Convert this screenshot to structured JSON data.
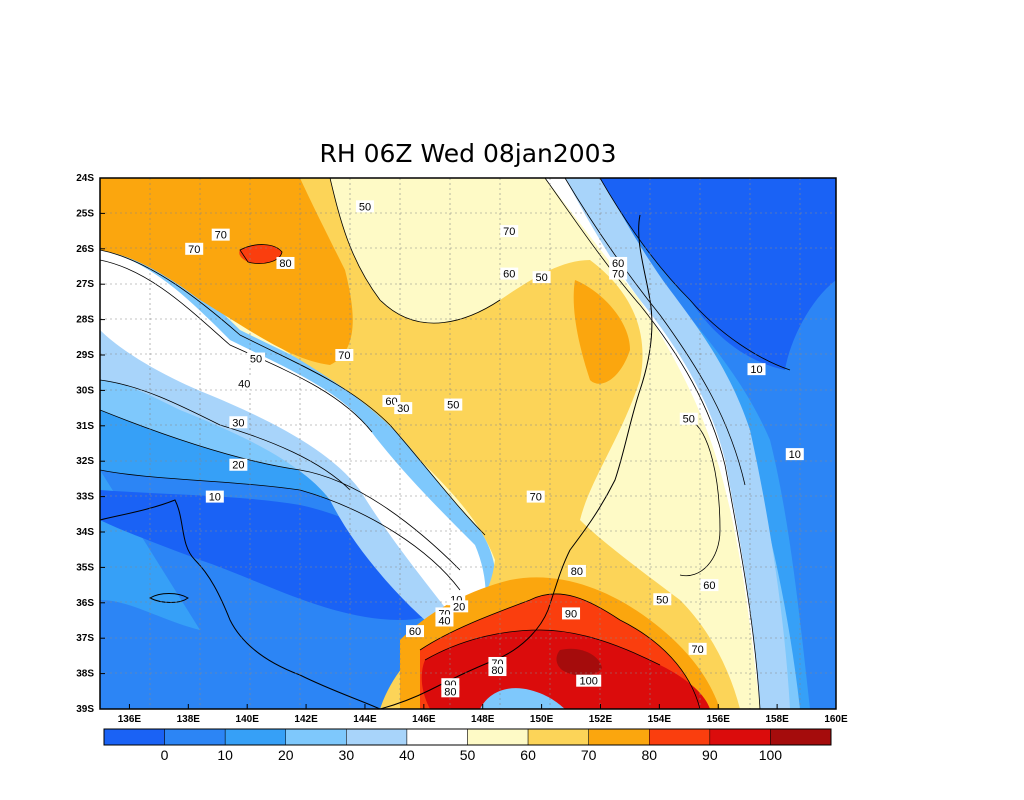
{
  "title": "RH 06Z Wed 08jan2003",
  "lat_labels": [
    "24S",
    "25S",
    "26S",
    "27S",
    "28S",
    "29S",
    "30S",
    "31S",
    "32S",
    "33S",
    "34S",
    "35S",
    "36S",
    "37S",
    "38S",
    "39S"
  ],
  "lon_labels": [
    "136E",
    "138E",
    "140E",
    "142E",
    "144E",
    "146E",
    "148E",
    "150E",
    "152E",
    "154E",
    "156E",
    "158E",
    "160E"
  ],
  "colorbar": {
    "labels": [
      "0",
      "10",
      "20",
      "30",
      "40",
      "50",
      "60",
      "70",
      "80",
      "90",
      "100"
    ],
    "colors": [
      "#1a62f5",
      "#2c85f5",
      "#36a0f7",
      "#7ec8fc",
      "#a8d4fa",
      "#ffffff",
      "#fefac6",
      "#fcd458",
      "#fba60e",
      "#fa3e0e",
      "#db0c0c",
      "#a50c0c"
    ]
  },
  "contour_labels": [
    {
      "text": "50",
      "lon": 144.0,
      "lat": -24.8
    },
    {
      "text": "70",
      "lon": 148.9,
      "lat": -25.5
    },
    {
      "text": "70",
      "lon": 139.1,
      "lat": -25.6
    },
    {
      "text": "70",
      "lon": 138.2,
      "lat": -26.0
    },
    {
      "text": "80",
      "lon": 141.3,
      "lat": -26.4
    },
    {
      "text": "60",
      "lon": 148.9,
      "lat": -26.7
    },
    {
      "text": "50",
      "lon": 150.0,
      "lat": -26.8
    },
    {
      "text": "60",
      "lon": 152.6,
      "lat": -26.4
    },
    {
      "text": "70",
      "lon": 152.6,
      "lat": -26.7
    },
    {
      "text": "50",
      "lon": 140.3,
      "lat": -29.1
    },
    {
      "text": "70",
      "lon": 143.3,
      "lat": -29.0
    },
    {
      "text": "40",
      "lon": 139.9,
      "lat": -29.8
    },
    {
      "text": "10",
      "lon": 157.3,
      "lat": -29.4
    },
    {
      "text": "60",
      "lon": 144.9,
      "lat": -30.3
    },
    {
      "text": "30",
      "lon": 145.3,
      "lat": -30.5
    },
    {
      "text": "50",
      "lon": 147.0,
      "lat": -30.4
    },
    {
      "text": "30",
      "lon": 139.7,
      "lat": -30.9
    },
    {
      "text": "50",
      "lon": 155.0,
      "lat": -30.8
    },
    {
      "text": "20",
      "lon": 139.7,
      "lat": -32.1
    },
    {
      "text": "10",
      "lon": 158.6,
      "lat": -31.8
    },
    {
      "text": "10",
      "lon": 138.9,
      "lat": -33.0
    },
    {
      "text": "70",
      "lon": 149.8,
      "lat": -33.0
    },
    {
      "text": "80",
      "lon": 151.2,
      "lat": -35.1
    },
    {
      "text": "60",
      "lon": 155.7,
      "lat": -35.5
    },
    {
      "text": "50",
      "lon": 154.1,
      "lat": -35.9
    },
    {
      "text": "10",
      "lon": 147.1,
      "lat": -35.9
    },
    {
      "text": "20",
      "lon": 147.2,
      "lat": -36.1
    },
    {
      "text": "70",
      "lon": 146.7,
      "lat": -36.3
    },
    {
      "text": "40",
      "lon": 146.7,
      "lat": -36.5
    },
    {
      "text": "90",
      "lon": 151.0,
      "lat": -36.3
    },
    {
      "text": "60",
      "lon": 145.7,
      "lat": -36.8
    },
    {
      "text": "70",
      "lon": 155.3,
      "lat": -37.3
    },
    {
      "text": "70",
      "lon": 148.5,
      "lat": -37.7
    },
    {
      "text": "80",
      "lon": 148.5,
      "lat": -37.9
    },
    {
      "text": "100",
      "lon": 151.6,
      "lat": -38.2
    },
    {
      "text": "90",
      "lon": 146.9,
      "lat": -38.3
    },
    {
      "text": "80",
      "lon": 146.9,
      "lat": -38.5
    }
  ]
}
